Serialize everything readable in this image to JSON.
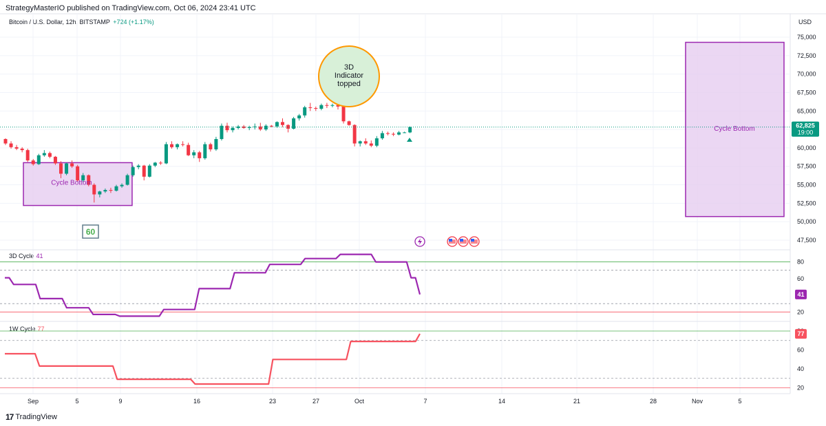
{
  "header": {
    "publisher": "StrategyMasterIO published on TradingView.com, Oct 06, 2024 23:41 UTC",
    "symbol": "Bitcoin / U.S. Dollar, 12h, BITSTAMP",
    "change": "+724 (+1.17%)",
    "currency": "USD"
  },
  "footer": {
    "brand": "TradingView"
  },
  "colors": {
    "up": "#089981",
    "down": "#f23645",
    "cycle3d": "#9c27b0",
    "cycle1w": "#f7525f",
    "box_fill": "#e6cdf0",
    "box_stroke": "#9c27b0",
    "grid": "#f0f3fa",
    "upper_band": "#4caf50",
    "lower_band": "#f7525f"
  },
  "chart_data": [
    {
      "type": "candlestick",
      "title": "Bitcoin / U.S. Dollar, 12h, BITSTAMP",
      "ylim": [
        46000,
        77000
      ],
      "yticks": [
        "75,000",
        "72,500",
        "70,000",
        "67,500",
        "65,000",
        "62,500",
        "60,000",
        "57,500",
        "55,000",
        "52,500",
        "50,000",
        "47,500"
      ],
      "xticks": [
        "Sep",
        "5",
        "9",
        "16",
        "23",
        "27",
        "Oct",
        "7",
        "14",
        "21",
        "28",
        "Nov",
        "5"
      ],
      "last_price": "62,825",
      "countdown": "19:00",
      "candles": [
        [
          61200,
          61300,
          60400,
          60600
        ],
        [
          60600,
          60900,
          59900,
          60100
        ],
        [
          60100,
          60400,
          59700,
          59900
        ],
        [
          59900,
          60100,
          59400,
          59700
        ],
        [
          59700,
          59900,
          58100,
          58300
        ],
        [
          58300,
          58500,
          57600,
          57800
        ],
        [
          57800,
          59200,
          57700,
          59000
        ],
        [
          59000,
          59700,
          58800,
          59300
        ],
        [
          59300,
          59500,
          58600,
          58800
        ],
        [
          58800,
          58900,
          57700,
          57900
        ],
        [
          57900,
          58200,
          55900,
          56500
        ],
        [
          56500,
          58000,
          56300,
          57900
        ],
        [
          57900,
          58300,
          57300,
          57500
        ],
        [
          57500,
          57700,
          55400,
          55600
        ],
        [
          55600,
          56600,
          55300,
          56300
        ],
        [
          56300,
          56400,
          54800,
          55000
        ],
        [
          55000,
          55200,
          52600,
          53700
        ],
        [
          53700,
          54200,
          53300,
          54100
        ],
        [
          54100,
          54500,
          53900,
          54300
        ],
        [
          54300,
          54600,
          53900,
          54200
        ],
        [
          54200,
          55000,
          54100,
          54800
        ],
        [
          54800,
          55200,
          54600,
          55000
        ],
        [
          55000,
          56500,
          54900,
          56300
        ],
        [
          56300,
          57600,
          56100,
          57400
        ],
        [
          57400,
          57800,
          57100,
          57600
        ],
        [
          57600,
          57700,
          55600,
          56100
        ],
        [
          56100,
          57800,
          56000,
          57600
        ],
        [
          57600,
          58100,
          57400,
          58000
        ],
        [
          58000,
          58200,
          57700,
          57900
        ],
        [
          57900,
          60800,
          57800,
          60500
        ],
        [
          60500,
          60900,
          59900,
          60100
        ],
        [
          60100,
          60600,
          59800,
          60500
        ],
        [
          60500,
          60900,
          60200,
          60400
        ],
        [
          60400,
          60700,
          58900,
          59000
        ],
        [
          59000,
          59700,
          58600,
          59400
        ],
        [
          59400,
          59600,
          58100,
          58600
        ],
        [
          58600,
          60800,
          58400,
          60500
        ],
        [
          60500,
          60700,
          59500,
          59800
        ],
        [
          59800,
          61500,
          59600,
          61200
        ],
        [
          61200,
          63300,
          61000,
          63000
        ],
        [
          63000,
          63400,
          62100,
          62400
        ],
        [
          62400,
          62900,
          62100,
          62700
        ],
        [
          62700,
          63100,
          62500,
          62900
        ],
        [
          62900,
          63100,
          62600,
          62700
        ],
        [
          62700,
          63000,
          62400,
          62800
        ],
        [
          62800,
          63300,
          62500,
          62900
        ],
        [
          62900,
          63400,
          62300,
          62500
        ],
        [
          62500,
          63200,
          62300,
          63000
        ],
        [
          63000,
          63100,
          62800,
          62900
        ],
        [
          62900,
          63600,
          62700,
          63500
        ],
        [
          63500,
          64000,
          62800,
          63100
        ],
        [
          63100,
          63200,
          62100,
          62600
        ],
        [
          62600,
          64200,
          62500,
          64000
        ],
        [
          64000,
          64600,
          63700,
          64400
        ],
        [
          64400,
          65700,
          64100,
          65500
        ],
        [
          65500,
          66100,
          65000,
          65400
        ],
        [
          65400,
          65600,
          65000,
          65300
        ],
        [
          65300,
          66000,
          65100,
          65800
        ],
        [
          65800,
          66100,
          65400,
          65700
        ],
        [
          65700,
          66000,
          65500,
          65800
        ],
        [
          65800,
          66000,
          65200,
          65600
        ],
        [
          65600,
          65700,
          63300,
          63600
        ],
        [
          63600,
          63700,
          63000,
          63100
        ],
        [
          63100,
          63200,
          60200,
          60600
        ],
        [
          60600,
          61000,
          60200,
          60900
        ],
        [
          60900,
          61300,
          60400,
          60600
        ],
        [
          60600,
          61000,
          60100,
          60300
        ],
        [
          60300,
          61600,
          60100,
          61300
        ],
        [
          61300,
          62300,
          61100,
          62000
        ],
        [
          62000,
          62200,
          61700,
          61900
        ],
        [
          61900,
          62100,
          61600,
          61800
        ],
        [
          61800,
          62300,
          61700,
          62100
        ],
        [
          62100,
          62200,
          62000,
          62100
        ],
        [
          62100,
          62900,
          62000,
          62825
        ]
      ],
      "annotations": [
        {
          "type": "box",
          "label": "Cycle Bottom",
          "price_top": 58000,
          "price_bottom": 52200,
          "from_candle": 3,
          "to_candle": 20
        },
        {
          "type": "box",
          "label": "Cycle Bottom",
          "price_top": 74300,
          "price_bottom": 50700,
          "from_date": "Nov 2",
          "to_date": "Nov 6"
        },
        {
          "type": "circle",
          "label": [
            "3D",
            "Indicator",
            "topped"
          ]
        },
        {
          "type": "badge",
          "label": "60"
        }
      ]
    },
    {
      "type": "line",
      "title": "3D Cycle",
      "value_label": "41",
      "ylim": [
        12,
        92
      ],
      "yticks": [
        "80",
        "60",
        "40",
        "20"
      ],
      "bands": {
        "upper": 80,
        "upper_dotted": 70,
        "lower_dotted": 30,
        "lower": 20
      },
      "series": [
        {
          "name": "3D Cycle",
          "values": [
            61,
            61,
            53,
            53,
            53,
            53,
            53,
            53,
            36,
            36,
            36,
            36,
            36,
            36,
            25,
            25,
            25,
            25,
            25,
            25,
            17,
            17,
            17,
            17,
            17,
            17,
            15,
            15,
            15,
            15,
            15,
            15,
            15,
            15,
            15,
            15,
            23,
            23,
            23,
            23,
            23,
            23,
            23,
            23,
            48,
            48,
            48,
            48,
            48,
            48,
            48,
            48,
            67,
            67,
            67,
            67,
            67,
            67,
            67,
            67,
            77,
            77,
            77,
            77,
            77,
            77,
            77,
            77,
            84,
            84,
            84,
            84,
            84,
            84,
            84,
            84,
            89,
            89,
            89,
            89,
            89,
            89,
            89,
            89,
            80,
            80,
            80,
            80,
            80,
            80,
            80,
            80,
            61,
            61,
            41
          ]
        }
      ]
    },
    {
      "type": "line",
      "title": "1W Cycle",
      "value_label": "77",
      "ylim": [
        16,
        88
      ],
      "yticks": [
        "80",
        "60",
        "40",
        "20"
      ],
      "bands": {
        "upper": 80,
        "upper_dotted": 70,
        "lower_dotted": 30,
        "lower": 20
      },
      "series": [
        {
          "name": "1W Cycle",
          "values": [
            56,
            56,
            56,
            56,
            56,
            56,
            56,
            56,
            43,
            43,
            43,
            43,
            43,
            43,
            43,
            43,
            43,
            43,
            43,
            43,
            43,
            43,
            43,
            43,
            43,
            43,
            29,
            29,
            29,
            29,
            29,
            29,
            29,
            29,
            29,
            29,
            29,
            29,
            29,
            29,
            29,
            29,
            29,
            29,
            24,
            24,
            24,
            24,
            24,
            24,
            24,
            24,
            24,
            24,
            24,
            24,
            24,
            24,
            24,
            24,
            24,
            24,
            50,
            50,
            50,
            50,
            50,
            50,
            50,
            50,
            50,
            50,
            50,
            50,
            50,
            50,
            50,
            50,
            50,
            50,
            69,
            69,
            69,
            69,
            69,
            69,
            69,
            69,
            69,
            69,
            69,
            69,
            69,
            69,
            69,
            69,
            77
          ]
        }
      ]
    }
  ]
}
